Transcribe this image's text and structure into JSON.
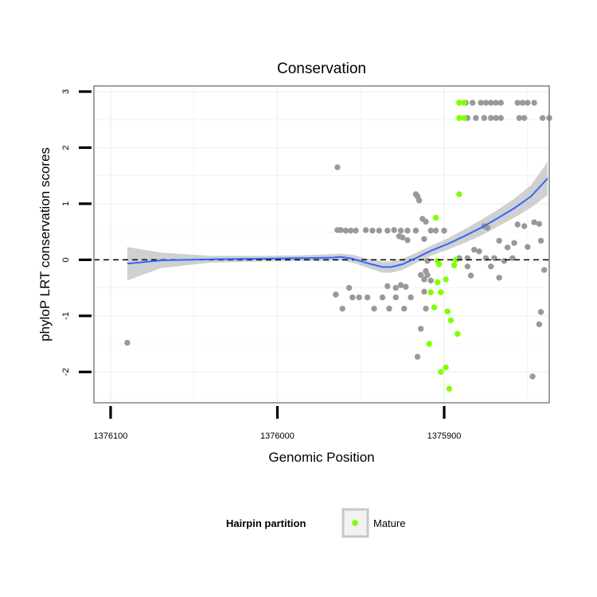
{
  "chart_data": {
    "type": "scatter",
    "title": "Conservation",
    "xlabel": "Genomic Position",
    "ylabel": "phyloP LRT conservation scores",
    "x_reversed": true,
    "xlim": [
      1376110,
      1375837
    ],
    "ylim": [
      -2.55,
      3.1
    ],
    "x_ticks": [
      1376100,
      1376000,
      1375900
    ],
    "x_tick_labels": [
      "1376100",
      "1376000",
      "1375900"
    ],
    "y_ticks": [
      -2,
      -1,
      0,
      1,
      2,
      3
    ],
    "y_tick_labels": [
      "-2",
      "-1",
      "0",
      "1",
      "2",
      "3"
    ],
    "grid": true,
    "reference_line": {
      "y": 0,
      "style": "dashed"
    },
    "legend": {
      "title": "Hairpin partition",
      "position": "bottom",
      "entries": [
        {
          "label": "Mature",
          "color": "#7fff00"
        }
      ]
    },
    "colors": {
      "background_points": "#999999",
      "mature_points": "#7fff00",
      "smooth_line": "#3366ff",
      "ribbon": "#c8c8c8"
    },
    "series": [
      {
        "category": "background",
        "points": [
          [
            1376090,
            -1.48
          ],
          [
            1375964,
            1.65
          ],
          [
            1375965,
            -0.62
          ],
          [
            1375964,
            0.53
          ],
          [
            1375962,
            0.53
          ],
          [
            1375959,
            0.52
          ],
          [
            1375956,
            0.52
          ],
          [
            1375953,
            0.52
          ],
          [
            1375947,
            0.53
          ],
          [
            1375943,
            0.52
          ],
          [
            1375939,
            0.52
          ],
          [
            1375934,
            0.52
          ],
          [
            1375930,
            0.53
          ],
          [
            1375926,
            0.52
          ],
          [
            1375922,
            0.52
          ],
          [
            1375917,
            0.52
          ],
          [
            1375961,
            -0.87
          ],
          [
            1375957,
            -0.5
          ],
          [
            1375955,
            -0.67
          ],
          [
            1375951,
            -0.67
          ],
          [
            1375946,
            -0.67
          ],
          [
            1375942,
            -0.87
          ],
          [
            1375937,
            -0.67
          ],
          [
            1375933,
            -0.87
          ],
          [
            1375929,
            -0.67
          ],
          [
            1375924,
            -0.87
          ],
          [
            1375920,
            -0.67
          ],
          [
            1375934,
            -0.47
          ],
          [
            1375929,
            -0.5
          ],
          [
            1375926,
            -0.45
          ],
          [
            1375923,
            -0.48
          ],
          [
            1375927,
            0.42
          ],
          [
            1375925,
            0.4
          ],
          [
            1375922,
            0.35
          ],
          [
            1375913,
            0.73
          ],
          [
            1375911,
            0.68
          ],
          [
            1375908,
            0.52
          ],
          [
            1375905,
            0.52
          ],
          [
            1375900,
            0.52
          ],
          [
            1375917,
            1.17
          ],
          [
            1375916,
            1.13
          ],
          [
            1375915,
            1.06
          ],
          [
            1375912,
            0.37
          ],
          [
            1375910,
            -0.27
          ],
          [
            1375911,
            -0.2
          ],
          [
            1375908,
            -0.37
          ],
          [
            1375914,
            -0.27
          ],
          [
            1375916,
            -1.73
          ],
          [
            1375914,
            -1.23
          ],
          [
            1375911,
            -0.87
          ],
          [
            1375912,
            -0.57
          ],
          [
            1375912,
            -0.35
          ],
          [
            1375910,
            -0.02
          ],
          [
            1375891,
            0.03
          ],
          [
            1375886,
            0.03
          ],
          [
            1375882,
            0.18
          ],
          [
            1375879,
            0.15
          ],
          [
            1375875,
            0.03
          ],
          [
            1375870,
            0.03
          ],
          [
            1375864,
            -0.02
          ],
          [
            1375859,
            0.03
          ],
          [
            1375872,
            -0.12
          ],
          [
            1375867,
            -0.32
          ],
          [
            1375884,
            -0.28
          ],
          [
            1375886,
            -0.12
          ],
          [
            1375876,
            0.6
          ],
          [
            1375874,
            0.57
          ],
          [
            1375867,
            0.34
          ],
          [
            1375862,
            0.22
          ],
          [
            1375858,
            0.3
          ],
          [
            1375856,
            0.63
          ],
          [
            1375852,
            0.6
          ],
          [
            1375850,
            0.23
          ],
          [
            1375846,
            0.67
          ],
          [
            1375843,
            0.64
          ],
          [
            1375842,
            0.34
          ],
          [
            1375840,
            -0.18
          ],
          [
            1375842,
            -0.93
          ],
          [
            1375843,
            -1.15
          ],
          [
            1375847,
            -2.08
          ],
          [
            1375887,
            2.8
          ],
          [
            1375883,
            2.8
          ],
          [
            1375878,
            2.8
          ],
          [
            1375875,
            2.8
          ],
          [
            1375872,
            2.8
          ],
          [
            1375869,
            2.8
          ],
          [
            1375866,
            2.8
          ],
          [
            1375856,
            2.8
          ],
          [
            1375853,
            2.8
          ],
          [
            1375850,
            2.8
          ],
          [
            1375846,
            2.8
          ],
          [
            1375886,
            2.53
          ],
          [
            1375881,
            2.53
          ],
          [
            1375876,
            2.53
          ],
          [
            1375872,
            2.53
          ],
          [
            1375869,
            2.53
          ],
          [
            1375866,
            2.53
          ],
          [
            1375855,
            2.53
          ],
          [
            1375852,
            2.53
          ],
          [
            1375841,
            2.53
          ],
          [
            1375837,
            2.53
          ]
        ]
      },
      {
        "category": "Mature",
        "points": [
          [
            1375891,
            2.8
          ],
          [
            1375888,
            2.8
          ],
          [
            1375891,
            2.53
          ],
          [
            1375888,
            2.53
          ],
          [
            1375891,
            1.17
          ],
          [
            1375905,
            0.75
          ],
          [
            1375904,
            -0.02
          ],
          [
            1375904,
            -0.4
          ],
          [
            1375898,
            -0.92
          ],
          [
            1375896,
            -1.08
          ],
          [
            1375893,
            -0.0
          ],
          [
            1375892,
            -1.32
          ],
          [
            1375908,
            -0.58
          ],
          [
            1375906,
            -0.85
          ],
          [
            1375902,
            -0.58
          ],
          [
            1375903,
            -0.08
          ],
          [
            1375899,
            -0.35
          ],
          [
            1375894,
            -0.1
          ],
          [
            1375909,
            -1.5
          ],
          [
            1375902,
            -2.0
          ],
          [
            1375899,
            -1.92
          ],
          [
            1375897,
            -2.3
          ]
        ]
      }
    ],
    "smooth": [
      [
        1376090,
        -0.07
      ],
      [
        1376070,
        -0.01
      ],
      [
        1376040,
        0.01
      ],
      [
        1376010,
        0.02
      ],
      [
        1375985,
        0.03
      ],
      [
        1375967,
        0.04
      ],
      [
        1375962,
        0.05
      ],
      [
        1375955,
        0.02
      ],
      [
        1375946,
        -0.06
      ],
      [
        1375937,
        -0.13
      ],
      [
        1375932,
        -0.13
      ],
      [
        1375925,
        -0.08
      ],
      [
        1375917,
        0.03
      ],
      [
        1375908,
        0.16
      ],
      [
        1375898,
        0.28
      ],
      [
        1375888,
        0.42
      ],
      [
        1375878,
        0.57
      ],
      [
        1375868,
        0.74
      ],
      [
        1375858,
        0.92
      ],
      [
        1375848,
        1.13
      ],
      [
        1375838,
        1.45
      ]
    ],
    "ribbon_halfwidth": [
      0.3,
      0.14,
      0.06,
      0.05,
      0.05,
      0.06,
      0.06,
      0.07,
      0.08,
      0.1,
      0.1,
      0.1,
      0.09,
      0.09,
      0.1,
      0.12,
      0.14,
      0.15,
      0.17,
      0.2,
      0.3
    ]
  }
}
